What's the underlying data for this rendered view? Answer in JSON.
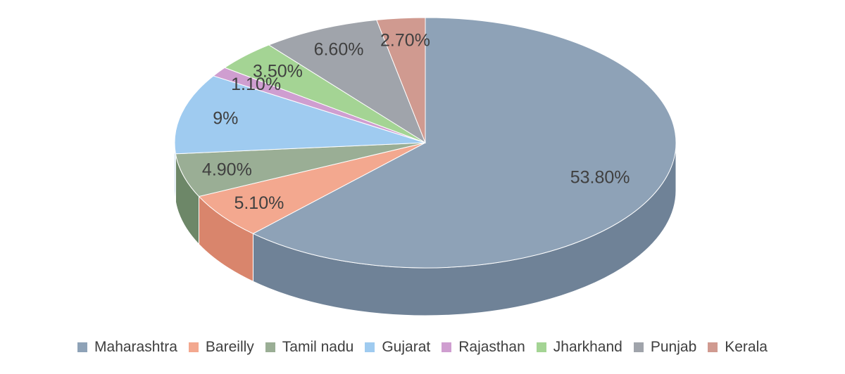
{
  "chart_data": {
    "type": "pie",
    "style": "3d",
    "legend_position": "bottom",
    "categories": [
      "Maharashtra",
      "Bareilly",
      "Tamil nadu",
      "Gujarat",
      "Rajasthan",
      "Jharkhand",
      "Punjab",
      "Kerala"
    ],
    "values": [
      53.8,
      5.1,
      4.9,
      9,
      1.1,
      3.5,
      6.6,
      2.7
    ],
    "labels": [
      "53.80%",
      "5.10%",
      "4.90%",
      "9%",
      "1.10%",
      "3.50%",
      "6.60%",
      "2.70%"
    ],
    "colors": [
      "#8ea2b7",
      "#f3a88f",
      "#9aae95",
      "#9fcbf0",
      "#cf9ed0",
      "#a4d494",
      "#a0a4ab",
      "#d09a90"
    ],
    "side_colors": [
      "#6f8297",
      "#d9856c",
      "#6d8768",
      "#7aa9d4",
      "#b07db3",
      "#7fb36f",
      "#7d8189",
      "#b47a70"
    ]
  }
}
